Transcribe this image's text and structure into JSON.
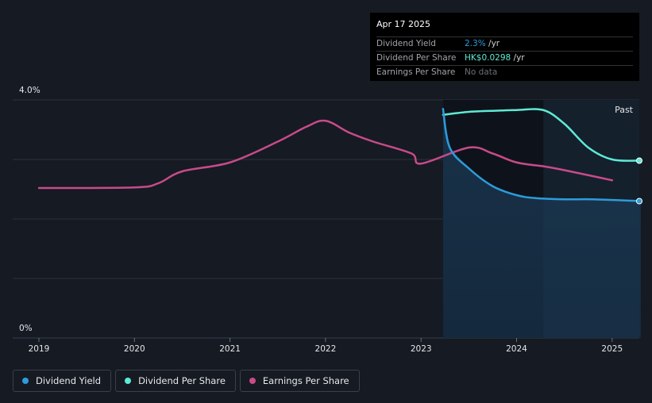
{
  "tooltip": {
    "date": "Apr 17 2025",
    "rows": [
      {
        "label": "Dividend Yield",
        "value": "2.3%",
        "unit": " /yr",
        "color": "#2d9cdb"
      },
      {
        "label": "Dividend Per Share",
        "value": "HK$0.0298",
        "unit": " /yr",
        "color": "#5eead4"
      },
      {
        "label": "Earnings Per Share",
        "value": "No data",
        "unit": ""
      }
    ]
  },
  "past_label": "Past",
  "legend": [
    {
      "label": "Dividend Yield",
      "color": "#2d9cdb"
    },
    {
      "label": "Dividend Per Share",
      "color": "#5eead4"
    },
    {
      "label": "Earnings Per Share",
      "color": "#c94a8a"
    }
  ],
  "chart_data": {
    "type": "line",
    "y_axis": {
      "labels": [
        "4.0%",
        "0%"
      ],
      "ylim": [
        0,
        4.0
      ]
    },
    "x_axis": {
      "ticks": [
        "2019",
        "2020",
        "2021",
        "2022",
        "2023",
        "2024",
        "2025"
      ]
    },
    "series": [
      {
        "name": "Dividend Yield",
        "color": "#2d9cdb",
        "points": [
          [
            2023.23,
            3.85
          ],
          [
            2023.3,
            3.2
          ],
          [
            2023.5,
            2.85
          ],
          [
            2023.75,
            2.55
          ],
          [
            2024.0,
            2.4
          ],
          [
            2024.2,
            2.35
          ],
          [
            2024.5,
            2.33
          ],
          [
            2024.8,
            2.33
          ],
          [
            2025.3,
            2.3
          ]
        ]
      },
      {
        "name": "Dividend Per Share",
        "color": "#5eead4",
        "points": [
          [
            2023.23,
            3.75
          ],
          [
            2023.5,
            3.8
          ],
          [
            2023.8,
            3.82
          ],
          [
            2024.0,
            3.83
          ],
          [
            2024.28,
            3.83
          ],
          [
            2024.5,
            3.6
          ],
          [
            2024.75,
            3.2
          ],
          [
            2025.0,
            3.0
          ],
          [
            2025.3,
            2.98
          ]
        ]
      },
      {
        "name": "Earnings Per Share",
        "color": "#c94a8a",
        "points": [
          [
            2018.0,
            2.5
          ],
          [
            2019.0,
            2.52
          ],
          [
            2020.0,
            2.53
          ],
          [
            2020.25,
            2.6
          ],
          [
            2020.5,
            2.8
          ],
          [
            2021.0,
            2.95
          ],
          [
            2021.5,
            3.3
          ],
          [
            2021.8,
            3.55
          ],
          [
            2022.0,
            3.65
          ],
          [
            2022.25,
            3.45
          ],
          [
            2022.5,
            3.3
          ],
          [
            2022.9,
            3.1
          ],
          [
            2023.0,
            2.93
          ],
          [
            2023.5,
            3.2
          ],
          [
            2023.75,
            3.1
          ],
          [
            2024.0,
            2.95
          ],
          [
            2024.3,
            2.88
          ],
          [
            2024.5,
            2.82
          ],
          [
            2025.0,
            2.65
          ]
        ]
      }
    ]
  }
}
